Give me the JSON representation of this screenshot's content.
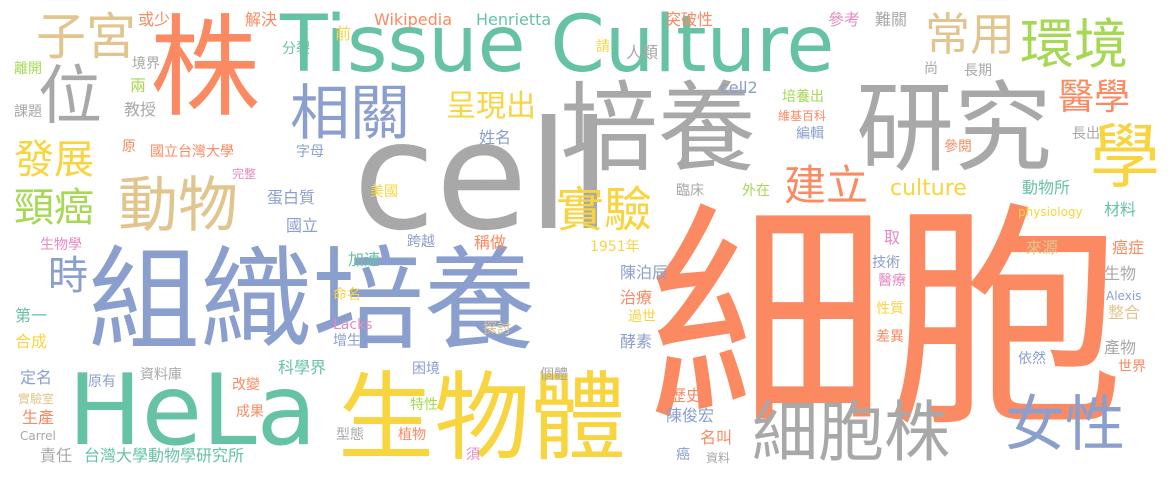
{
  "palette": {
    "orange": "#fb8a62",
    "gray": "#a8a8a8",
    "blue": "#8b9fce",
    "green": "#66c2a4",
    "yellow": "#f8d43f",
    "tan": "#e1c58f",
    "pink": "#e48bc3",
    "lime": "#a6d854"
  },
  "words": [
    {
      "text": "細胞",
      "color": "orange"
    },
    {
      "text": "cell",
      "color": "gray"
    },
    {
      "text": "組織培養",
      "color": "blue"
    },
    {
      "text": "Tissue Culture",
      "color": "green"
    },
    {
      "text": "培養",
      "color": "gray"
    },
    {
      "text": "HeLa",
      "color": "green"
    },
    {
      "text": "生物體",
      "color": "yellow"
    },
    {
      "text": "株",
      "color": "orange"
    },
    {
      "text": "研究",
      "color": "gray"
    },
    {
      "text": "動物",
      "color": "tan"
    },
    {
      "text": "細胞株",
      "color": "gray"
    },
    {
      "text": "女性",
      "color": "blue"
    },
    {
      "text": "相關",
      "color": "blue"
    },
    {
      "text": "位",
      "color": "gray"
    },
    {
      "text": "學",
      "color": "yellow"
    },
    {
      "text": "環境",
      "color": "lime"
    },
    {
      "text": "常用",
      "color": "tan"
    },
    {
      "text": "子宮",
      "color": "tan"
    },
    {
      "text": "發展",
      "color": "yellow"
    },
    {
      "text": "頸癌",
      "color": "lime"
    },
    {
      "text": "實驗",
      "color": "yellow"
    },
    {
      "text": "建立",
      "color": "orange"
    },
    {
      "text": "呈現出",
      "color": "yellow"
    },
    {
      "text": "醫學",
      "color": "orange"
    },
    {
      "text": "時",
      "color": "blue"
    },
    {
      "text": "culture",
      "color": "yellow"
    },
    {
      "text": "或少",
      "color": "orange"
    },
    {
      "text": "解決",
      "color": "orange"
    },
    {
      "text": "Wikipedia",
      "color": "orange"
    },
    {
      "text": "Henrietta",
      "color": "green"
    },
    {
      "text": "突破性",
      "color": "orange"
    },
    {
      "text": "參考",
      "color": "pink"
    },
    {
      "text": "難關",
      "color": "gray"
    },
    {
      "text": "離開",
      "color": "lime"
    },
    {
      "text": "境界",
      "color": "gray"
    },
    {
      "text": "課題",
      "color": "gray"
    },
    {
      "text": "兩",
      "color": "lime"
    },
    {
      "text": "教授",
      "color": "gray"
    },
    {
      "text": "分裂",
      "color": "green"
    },
    {
      "text": "前",
      "color": "yellow"
    },
    {
      "text": "請",
      "color": "yellow"
    },
    {
      "text": "人類",
      "color": "gray"
    },
    {
      "text": "尚",
      "color": "gray"
    },
    {
      "text": "長期",
      "color": "gray"
    },
    {
      "text": "cell2",
      "color": "blue"
    },
    {
      "text": "培養出",
      "color": "lime"
    },
    {
      "text": "維基百科",
      "color": "orange"
    },
    {
      "text": "編輯",
      "color": "blue"
    },
    {
      "text": "長出",
      "color": "gray"
    },
    {
      "text": "參閱",
      "color": "orange"
    },
    {
      "text": "原",
      "color": "orange"
    },
    {
      "text": "國立台灣大學",
      "color": "orange"
    },
    {
      "text": "字母",
      "color": "blue"
    },
    {
      "text": "姓名",
      "color": "blue"
    },
    {
      "text": "完整",
      "color": "pink"
    },
    {
      "text": "蛋白質",
      "color": "blue"
    },
    {
      "text": "美國",
      "color": "yellow"
    },
    {
      "text": "臨床",
      "color": "gray"
    },
    {
      "text": "外在",
      "color": "lime"
    },
    {
      "text": "動物所",
      "color": "green"
    },
    {
      "text": "physiology",
      "color": "yellow"
    },
    {
      "text": "材料",
      "color": "green"
    },
    {
      "text": "國立",
      "color": "blue"
    },
    {
      "text": "生物學",
      "color": "pink"
    },
    {
      "text": "跨越",
      "color": "blue"
    },
    {
      "text": "稱做",
      "color": "orange"
    },
    {
      "text": "1951年",
      "color": "yellow"
    },
    {
      "text": "取",
      "color": "pink"
    },
    {
      "text": "來源",
      "color": "tan"
    },
    {
      "text": "癌症",
      "color": "orange"
    },
    {
      "text": "加速",
      "color": "green"
    },
    {
      "text": "陳泊辰",
      "color": "blue"
    },
    {
      "text": "技術",
      "color": "blue"
    },
    {
      "text": "醫療",
      "color": "pink"
    },
    {
      "text": "生物",
      "color": "gray"
    },
    {
      "text": "Alexis",
      "color": "blue"
    },
    {
      "text": "命名",
      "color": "yellow"
    },
    {
      "text": "治療",
      "color": "orange"
    },
    {
      "text": "第一",
      "color": "green"
    },
    {
      "text": "Lacks",
      "color": "pink"
    },
    {
      "text": "過世",
      "color": "yellow"
    },
    {
      "text": "性質",
      "color": "yellow"
    },
    {
      "text": "整合",
      "color": "tan"
    },
    {
      "text": "合成",
      "color": "yellow"
    },
    {
      "text": "增生",
      "color": "blue"
    },
    {
      "text": "探討",
      "color": "tan"
    },
    {
      "text": "酵素",
      "color": "blue"
    },
    {
      "text": "差異",
      "color": "orange"
    },
    {
      "text": "產物",
      "color": "gray"
    },
    {
      "text": "定名",
      "color": "blue"
    },
    {
      "text": "資料庫",
      "color": "gray"
    },
    {
      "text": "依然",
      "color": "blue"
    },
    {
      "text": "原有",
      "color": "blue"
    },
    {
      "text": "世界",
      "color": "orange"
    },
    {
      "text": "科學界",
      "color": "green"
    },
    {
      "text": "困境",
      "color": "blue"
    },
    {
      "text": "實驗室",
      "color": "tan"
    },
    {
      "text": "改變",
      "color": "orange"
    },
    {
      "text": "個體",
      "color": "gray"
    },
    {
      "text": "生產",
      "color": "orange"
    },
    {
      "text": "歷史",
      "color": "orange"
    },
    {
      "text": "特性",
      "color": "lime"
    },
    {
      "text": "成果",
      "color": "orange"
    },
    {
      "text": "Carrel",
      "color": "gray"
    },
    {
      "text": "陳俊宏",
      "color": "blue"
    },
    {
      "text": "型態",
      "color": "gray"
    },
    {
      "text": "植物",
      "color": "orange"
    },
    {
      "text": "名叫",
      "color": "orange"
    },
    {
      "text": "責任",
      "color": "gray"
    },
    {
      "text": "台灣大學動物學研究所",
      "color": "green"
    },
    {
      "text": "須",
      "color": "pink"
    },
    {
      "text": "癌",
      "color": "blue"
    },
    {
      "text": "資料",
      "color": "gray"
    }
  ]
}
